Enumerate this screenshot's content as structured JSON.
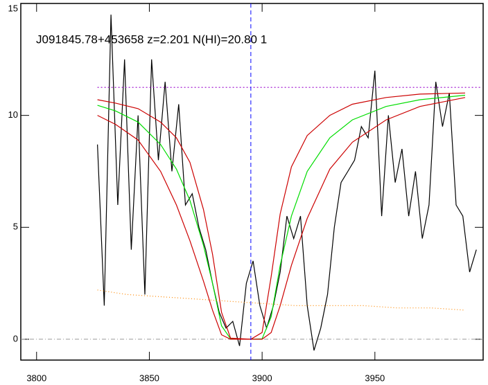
{
  "chart_data": {
    "type": "line",
    "title": "J091845.78+453658 z=2.201 N(HI)=20.80 1",
    "xlim": [
      3793,
      3998
    ],
    "ylim": [
      -0.93,
      15
    ],
    "xticks": [
      3800,
      3850,
      3900,
      3950
    ],
    "yticks": [
      0,
      5,
      10,
      15
    ],
    "vline": {
      "x": 3895,
      "color": "#0000ff"
    },
    "hline": {
      "y": 0,
      "color": "#999999"
    },
    "series": [
      {
        "color": "#000000",
        "x": [
          3827,
          3830,
          3833,
          3836,
          3839,
          3842,
          3845,
          3848,
          3851,
          3854,
          3857,
          3860,
          3863,
          3866,
          3869,
          3872,
          3875,
          3878,
          3881,
          3884,
          3887,
          3890,
          3893,
          3896,
          3899,
          3902,
          3905,
          3908,
          3911,
          3914,
          3917,
          3920,
          3923,
          3926,
          3929,
          3932,
          3935,
          3938,
          3941,
          3944,
          3947,
          3950,
          3953,
          3956,
          3959,
          3962,
          3965,
          3968,
          3971,
          3974,
          3977,
          3980,
          3983,
          3986,
          3989,
          3992,
          3995
        ],
        "values": [
          8.7,
          1.5,
          14.5,
          6,
          12.5,
          4,
          10,
          2,
          12.5,
          8,
          11.5,
          7.5,
          10.5,
          6,
          6.5,
          5,
          4,
          2.5,
          1.2,
          0.5,
          0.8,
          -0.3,
          2.5,
          3.5,
          1.5,
          0.5,
          1.5,
          3,
          5.5,
          4.5,
          5.5,
          1.5,
          -0.5,
          0.5,
          2,
          5,
          7,
          7.5,
          8,
          9.5,
          9,
          12,
          5.5,
          10,
          7,
          8.5,
          5.5,
          7.5,
          4.5,
          6,
          11.5,
          9.5,
          11,
          6,
          5.5,
          3,
          4
        ]
      },
      {
        "color": "#00dd00",
        "x": [
          3827,
          3835,
          3845,
          3855,
          3862,
          3868,
          3874,
          3878,
          3882,
          3886,
          3895,
          3900,
          3904,
          3908,
          3913,
          3920,
          3930,
          3940,
          3955,
          3970,
          3990
        ],
        "values": [
          10.45,
          10.2,
          9.7,
          8.7,
          7.6,
          6.2,
          4.2,
          2.5,
          0.6,
          0.02,
          0,
          0.02,
          1.0,
          3.3,
          5.5,
          7.5,
          9.0,
          9.8,
          10.4,
          10.7,
          10.9
        ]
      },
      {
        "color": "#cc0000",
        "x": [
          3827,
          3835,
          3845,
          3855,
          3862,
          3868,
          3874,
          3878,
          3882,
          3886,
          3895,
          3900,
          3904,
          3908,
          3913,
          3920,
          3930,
          3940,
          3955,
          3970,
          3990
        ],
        "values": [
          10.7,
          10.55,
          10.3,
          9.7,
          9.0,
          7.9,
          5.8,
          3.8,
          1.2,
          0.05,
          0,
          0.3,
          2.8,
          5.6,
          7.7,
          9.1,
          10.0,
          10.5,
          10.8,
          10.95,
          11.0
        ]
      },
      {
        "color": "#cc0000",
        "x": [
          3827,
          3835,
          3845,
          3855,
          3862,
          3868,
          3874,
          3878,
          3882,
          3886,
          3895,
          3900,
          3904,
          3908,
          3913,
          3920,
          3930,
          3940,
          3955,
          3970,
          3990
        ],
        "values": [
          10.0,
          9.6,
          8.9,
          7.5,
          6.0,
          4.4,
          2.6,
          1.3,
          0.2,
          0,
          0,
          0,
          0.3,
          1.5,
          3.3,
          5.4,
          7.6,
          8.8,
          9.8,
          10.4,
          10.8
        ]
      },
      {
        "color": "#ff8800",
        "dash": "1,3",
        "x": [
          3827,
          3840,
          3855,
          3870,
          3885,
          3900,
          3915,
          3930,
          3945,
          3960,
          3975,
          3990
        ],
        "values": [
          2.2,
          2.0,
          1.9,
          1.8,
          1.7,
          1.6,
          1.5,
          1.5,
          1.5,
          1.4,
          1.4,
          1.3
        ]
      },
      {
        "color": "#9900cc",
        "dash": "2,3",
        "x": [
          3827,
          3997
        ],
        "values": [
          11.25,
          11.25
        ]
      }
    ]
  }
}
